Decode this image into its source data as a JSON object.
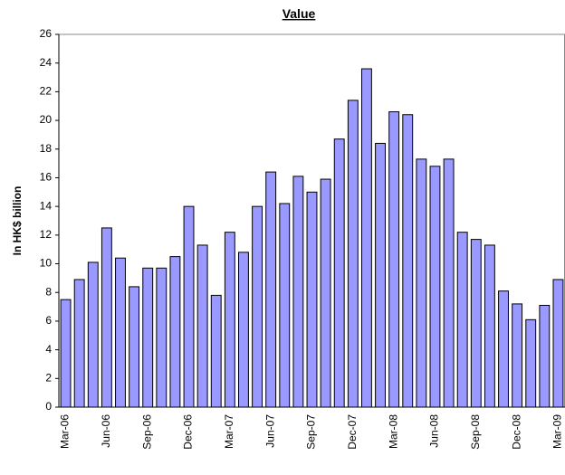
{
  "chart_data": {
    "type": "bar",
    "title": "Value",
    "y_label": "In HK$ billion",
    "categories": [
      "Mar-06",
      null,
      null,
      "Jun-06",
      null,
      null,
      "Sep-06",
      null,
      null,
      "Dec-06",
      null,
      null,
      "Mar-07",
      null,
      null,
      "Jun-07",
      null,
      null,
      "Sep-07",
      null,
      null,
      "Dec-07",
      null,
      null,
      "Mar-08",
      null,
      null,
      "Jun-08",
      null,
      null,
      "Sep-08",
      null,
      null,
      "Dec-08",
      null,
      null,
      "Mar-09"
    ],
    "values": [
      7.5,
      8.9,
      10.1,
      12.5,
      10.4,
      8.4,
      9.7,
      9.7,
      10.5,
      14.0,
      11.3,
      7.8,
      12.2,
      10.8,
      14.0,
      16.4,
      14.2,
      16.1,
      15.0,
      15.9,
      18.7,
      21.4,
      23.6,
      18.4,
      20.6,
      20.4,
      17.3,
      16.8,
      17.3,
      12.2,
      11.7,
      11.3,
      8.1,
      7.2,
      6.1,
      7.1,
      8.9
    ],
    "color": "#9999ff",
    "ylim": [
      0,
      26
    ],
    "yticks": [
      0,
      2,
      4,
      6,
      8,
      10,
      12,
      14,
      16,
      18,
      20,
      22,
      24,
      26
    ],
    "grid": false
  }
}
